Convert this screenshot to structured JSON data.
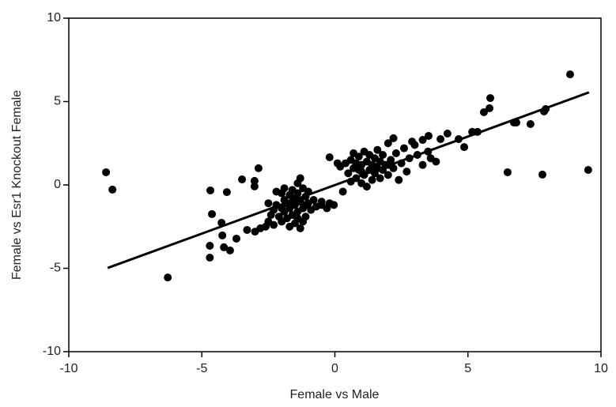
{
  "chart_data": {
    "type": "scatter",
    "xlabel": "Female vs Male",
    "ylabel": "Female vs Esr1 Knockout Female",
    "color": "#000000",
    "xlim": [
      -10,
      10
    ],
    "ylim": [
      -10,
      10
    ],
    "xticks": [
      -10,
      -5,
      0,
      5,
      10
    ],
    "yticks": [
      -10,
      -5,
      0,
      5,
      10
    ],
    "x": [
      -8.6,
      -8.36,
      -6.28,
      -4.7,
      -4.7,
      -4.68,
      -4.62,
      -4.23,
      -4.17,
      -4.06,
      -3.94,
      -3.7,
      -3.49,
      -3.02,
      -3.02,
      -2.87,
      -4.26,
      6.49,
      7.8,
      9.52,
      8.84,
      5.84,
      5.81,
      5.6,
      7.86,
      7.92,
      7.35,
      6.82,
      6.73,
      5.36,
      5.16,
      4.86,
      4.65,
      4.23,
      3.97,
      3.52,
      -2.8,
      -2.6,
      -2.5,
      -2.4,
      -2.3,
      -2.2,
      -2.1,
      -2.0,
      -2.0,
      -1.9,
      -1.9,
      -1.8,
      -1.8,
      -1.7,
      -1.7,
      -1.6,
      -1.6,
      -1.5,
      -1.5,
      -1.5,
      -1.4,
      -1.4,
      -1.4,
      -1.3,
      -1.3,
      -1.3,
      -1.2,
      -1.2,
      -1.1,
      -1.1,
      -1.0,
      -1.0,
      -0.9,
      -0.8,
      -0.7,
      -0.5,
      -0.3,
      -0.2,
      -2.2,
      -2.5,
      -2.0,
      -3.0,
      -3.3,
      -1.7,
      -1.2,
      -1.9,
      -1.6,
      -1.1,
      -1.4,
      -2.3,
      0.2,
      0.3,
      0.4,
      0.5,
      0.6,
      0.6,
      0.7,
      0.7,
      0.8,
      0.8,
      0.9,
      0.9,
      1.0,
      1.0,
      1.1,
      1.1,
      1.2,
      1.2,
      1.3,
      1.3,
      1.4,
      1.4,
      1.5,
      1.5,
      1.6,
      1.6,
      1.7,
      1.7,
      1.8,
      1.8,
      1.9,
      2.0,
      2.0,
      2.1,
      2.2,
      2.2,
      2.3,
      2.4,
      2.5,
      2.6,
      2.7,
      2.8,
      3.0,
      3.1,
      3.3,
      3.5,
      3.6,
      3.8,
      3.3,
      2.9,
      0.1,
      1.0,
      1.5,
      2.0,
      -0.2,
      -0.04,
      -0.5
    ],
    "y": [
      0.76,
      -0.28,
      -5.55,
      -4.36,
      -3.65,
      -0.33,
      -1.75,
      -3.03,
      -3.74,
      -0.43,
      -3.93,
      -3.22,
      0.33,
      0.24,
      -0.09,
      1.0,
      -2.27,
      0.76,
      0.62,
      0.9,
      6.63,
      5.21,
      4.6,
      4.36,
      4.41,
      4.55,
      3.65,
      3.74,
      3.74,
      3.18,
      3.18,
      2.27,
      2.75,
      3.08,
      2.75,
      2.94,
      -2.6,
      -2.5,
      -2.2,
      -1.8,
      -1.5,
      -1.2,
      -1.9,
      -1.4,
      -2.2,
      -0.9,
      -1.6,
      -1.1,
      -2.0,
      -0.6,
      -1.4,
      -0.3,
      -1.8,
      -0.8,
      -1.2,
      -2.3,
      0.1,
      -0.5,
      -1.6,
      -1.0,
      -2.6,
      0.4,
      -0.2,
      -1.4,
      -0.7,
      -1.9,
      -1.1,
      -0.4,
      -1.5,
      -0.9,
      -1.3,
      -1.2,
      -1.4,
      -1.1,
      -0.4,
      -1.1,
      -0.5,
      -2.8,
      -2.7,
      -2.5,
      -2.2,
      -0.2,
      -1.0,
      -1.2,
      -2.0,
      -2.4,
      1.1,
      -0.4,
      1.3,
      0.7,
      1.5,
      0.2,
      1.0,
      1.9,
      0.4,
      1.3,
      0.9,
      1.7,
      0.1,
      1.2,
      2.0,
      0.6,
      1.4,
      -0.1,
      0.9,
      1.8,
      0.3,
      1.2,
      1.6,
      0.7,
      1.0,
      2.1,
      0.4,
      1.4,
      1.8,
      0.9,
      1.2,
      2.5,
      0.6,
      1.5,
      2.8,
      1.0,
      1.9,
      0.3,
      1.3,
      2.2,
      0.8,
      1.6,
      2.4,
      1.8,
      1.2,
      2.0,
      1.6,
      1.4,
      2.7,
      2.6,
      1.3,
      0.8,
      1.1,
      1.2,
      1.66,
      -1.2,
      -1.0
    ],
    "line": {
      "x": [
        -8.54,
        9.55
      ],
      "y": [
        -4.98,
        5.55
      ]
    }
  }
}
